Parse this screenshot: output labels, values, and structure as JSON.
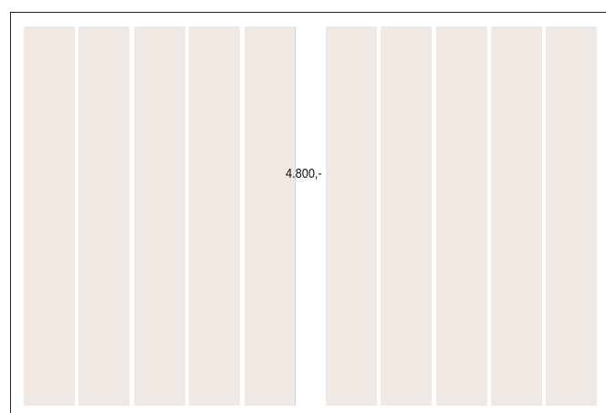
{
  "price": "4.800,-"
}
